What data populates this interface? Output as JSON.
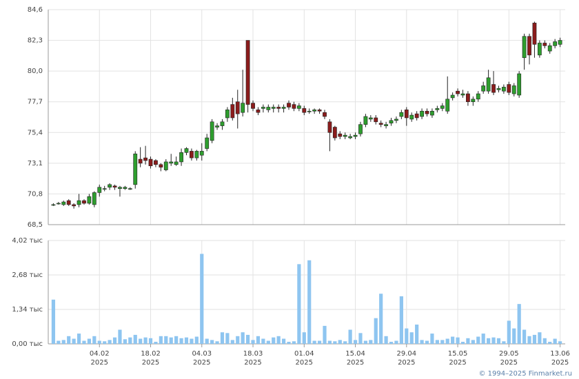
{
  "chart_data": [
    {
      "type": "candlestick",
      "x": [
        0,
        1,
        2,
        3,
        4,
        5,
        6,
        7,
        8,
        9,
        10,
        11,
        12,
        13,
        14,
        15,
        16,
        17,
        18,
        19,
        20,
        21,
        22,
        23,
        24,
        25,
        26,
        27,
        28,
        29,
        30,
        31,
        32,
        33,
        34,
        35,
        36,
        37,
        38,
        39,
        40,
        41,
        42,
        43,
        44,
        45,
        46,
        47,
        48,
        49,
        50,
        51,
        52,
        53,
        54,
        55,
        56,
        57,
        58,
        59,
        60,
        61,
        62,
        63,
        64,
        65,
        66,
        67,
        68,
        69,
        70,
        71,
        72,
        73,
        74,
        75,
        76,
        77,
        78,
        79,
        80,
        81,
        82,
        83,
        84,
        85,
        86,
        87,
        88,
        89,
        90,
        91,
        92,
        93,
        94,
        95,
        96,
        97,
        98,
        99
      ],
      "open": [
        70.0,
        70.1,
        70.0,
        70.3,
        70.0,
        70.0,
        70.3,
        70.1,
        70.0,
        70.9,
        71.2,
        71.3,
        71.4,
        71.2,
        71.2,
        71.2,
        71.5,
        73.4,
        73.5,
        73.4,
        73.3,
        73.0,
        72.6,
        73.1,
        73.0,
        73.2,
        73.9,
        74.0,
        73.5,
        73.7,
        74.2,
        74.8,
        75.8,
        75.9,
        76.5,
        77.5,
        77.7,
        76.9,
        82.3,
        77.6,
        77.1,
        77.2,
        77.1,
        77.2,
        77.3,
        77.2,
        77.6,
        77.5,
        77.2,
        77.2,
        77.0,
        77.0,
        77.1,
        76.9,
        76.2,
        75.8,
        75.3,
        75.1,
        75.0,
        75.1,
        75.3,
        76.0,
        76.4,
        76.5,
        76.1,
        75.9,
        76.1,
        76.3,
        76.6,
        77.1,
        76.4,
        76.8,
        76.6,
        77.0,
        76.7,
        77.1,
        77.2,
        77.0,
        78.0,
        78.5,
        78.2,
        78.3,
        77.7,
        77.9,
        78.5,
        78.5,
        79.0,
        78.6,
        78.5,
        79.0,
        78.3,
        78.2,
        81.0,
        82.6,
        83.6,
        81.2,
        82.1,
        81.5,
        81.9,
        82.0
      ],
      "high": [
        70.1,
        70.2,
        70.3,
        70.4,
        70.1,
        70.8,
        70.4,
        70.8,
        71.0,
        71.5,
        71.4,
        71.6,
        71.5,
        71.4,
        71.4,
        71.3,
        74.0,
        74.3,
        74.4,
        73.6,
        73.4,
        73.1,
        73.4,
        73.8,
        73.6,
        74.2,
        74.3,
        74.2,
        74.1,
        74.6,
        75.3,
        76.4,
        76.1,
        76.4,
        77.3,
        78.0,
        78.6,
        80.1,
        82.3,
        77.8,
        77.3,
        77.5,
        77.5,
        77.5,
        77.5,
        77.5,
        77.8,
        77.7,
        77.6,
        77.4,
        77.2,
        77.2,
        77.2,
        77.1,
        76.4,
        75.9,
        75.5,
        75.4,
        75.3,
        75.4,
        76.2,
        76.8,
        76.7,
        76.7,
        76.3,
        76.2,
        76.5,
        76.6,
        77.1,
        77.3,
        76.9,
        77.0,
        77.2,
        77.2,
        77.2,
        77.4,
        77.6,
        79.6,
        78.4,
        78.7,
        78.6,
        78.5,
        78.1,
        78.5,
        79.2,
        80.1,
        80.0,
        78.9,
        79.0,
        79.2,
        79.1,
        80.0,
        82.8,
        82.8,
        83.7,
        82.3,
        82.3,
        82.1,
        82.4,
        82.5
      ],
      "low": [
        69.9,
        70.0,
        69.9,
        69.9,
        69.7,
        69.8,
        70.0,
        70.0,
        69.8,
        70.6,
        71.0,
        71.1,
        71.1,
        70.6,
        71.1,
        71.1,
        71.2,
        72.8,
        73.0,
        72.7,
        72.8,
        72.5,
        72.5,
        72.9,
        72.9,
        72.9,
        73.7,
        73.3,
        73.3,
        73.3,
        74.0,
        74.6,
        75.6,
        75.6,
        76.2,
        76.3,
        75.7,
        76.6,
        76.9,
        77.0,
        76.7,
        76.9,
        76.9,
        76.9,
        76.9,
        76.9,
        77.1,
        77.0,
        77.0,
        76.7,
        76.8,
        76.8,
        76.8,
        76.4,
        74.0,
        74.8,
        74.9,
        74.9,
        74.9,
        74.9,
        75.1,
        75.8,
        76.2,
        76.0,
        75.8,
        75.7,
        75.9,
        76.1,
        76.4,
        75.9,
        76.2,
        76.3,
        76.4,
        76.6,
        76.5,
        76.9,
        77.0,
        76.8,
        77.8,
        78.1,
        78.0,
        77.4,
        77.4,
        77.7,
        78.3,
        78.3,
        78.2,
        78.4,
        78.3,
        78.2,
        78.1,
        78.0,
        80.1,
        80.5,
        81.0,
        81.0,
        81.7,
        81.3,
        81.7,
        81.8
      ],
      "close": [
        70.0,
        70.1,
        70.2,
        70.0,
        69.9,
        70.3,
        70.1,
        70.6,
        70.9,
        71.3,
        71.2,
        71.5,
        71.3,
        71.3,
        71.3,
        71.2,
        73.8,
        73.1,
        73.3,
        72.9,
        73.0,
        72.8,
        73.2,
        73.2,
        73.2,
        73.9,
        74.2,
        73.5,
        74.0,
        74.0,
        75.0,
        76.2,
        75.9,
        76.2,
        77.1,
        76.5,
        76.8,
        77.6,
        77.5,
        77.2,
        76.9,
        77.3,
        77.3,
        77.3,
        77.2,
        77.3,
        77.3,
        77.2,
        77.4,
        76.9,
        77.0,
        77.1,
        77.0,
        76.6,
        75.4,
        75.0,
        75.1,
        75.2,
        75.1,
        75.2,
        76.0,
        76.6,
        76.5,
        76.2,
        76.0,
        76.0,
        76.3,
        76.4,
        76.9,
        76.5,
        76.7,
        76.5,
        77.0,
        76.8,
        77.0,
        77.2,
        77.4,
        77.9,
        78.2,
        78.3,
        78.3,
        77.7,
        77.9,
        78.3,
        78.9,
        79.5,
        78.4,
        78.7,
        78.8,
        78.4,
        78.9,
        79.8,
        82.6,
        81.2,
        82.0,
        82.1,
        81.9,
        81.9,
        82.2,
        82.3
      ],
      "up_color": "#2e9e2e",
      "down_color": "#8b1c1c",
      "xlim": [
        -1,
        100
      ],
      "ylim": [
        68.5,
        84.6
      ],
      "yticks": [
        {
          "value": 68.5,
          "label": "68,5"
        },
        {
          "value": 70.8,
          "label": "70,8"
        },
        {
          "value": 73.1,
          "label": "73,1"
        },
        {
          "value": 75.4,
          "label": "75,4"
        },
        {
          "value": 77.7,
          "label": "77,7"
        },
        {
          "value": 80.0,
          "label": "80,0"
        },
        {
          "value": 82.3,
          "label": "82,3"
        },
        {
          "value": 84.6,
          "label": "84,6"
        }
      ],
      "grid": true
    },
    {
      "type": "bar",
      "x": [
        0,
        1,
        2,
        3,
        4,
        5,
        6,
        7,
        8,
        9,
        10,
        11,
        12,
        13,
        14,
        15,
        16,
        17,
        18,
        19,
        20,
        21,
        22,
        23,
        24,
        25,
        26,
        27,
        28,
        29,
        30,
        31,
        32,
        33,
        34,
        35,
        36,
        37,
        38,
        39,
        40,
        41,
        42,
        43,
        44,
        45,
        46,
        47,
        48,
        49,
        50,
        51,
        52,
        53,
        54,
        55,
        56,
        57,
        58,
        59,
        60,
        61,
        62,
        63,
        64,
        65,
        66,
        67,
        68,
        69,
        70,
        71,
        72,
        73,
        74,
        75,
        76,
        77,
        78,
        79,
        80,
        81,
        82,
        83,
        84,
        85,
        86,
        87,
        88,
        89,
        90,
        91,
        92,
        93,
        94,
        95,
        96,
        97,
        98,
        99
      ],
      "values": [
        1.72,
        0.12,
        0.15,
        0.3,
        0.2,
        0.4,
        0.12,
        0.2,
        0.3,
        0.12,
        0.1,
        0.15,
        0.25,
        0.55,
        0.18,
        0.25,
        0.35,
        0.2,
        0.25,
        0.22,
        0.08,
        0.3,
        0.3,
        0.25,
        0.3,
        0.22,
        0.25,
        0.2,
        0.28,
        3.5,
        0.2,
        0.15,
        0.1,
        0.45,
        0.42,
        0.15,
        0.3,
        0.45,
        0.35,
        0.15,
        0.3,
        0.2,
        0.12,
        0.25,
        0.3,
        0.2,
        0.08,
        0.1,
        3.1,
        0.45,
        3.25,
        0.12,
        0.12,
        0.7,
        0.12,
        0.1,
        0.15,
        0.1,
        0.55,
        0.15,
        0.42,
        0.12,
        0.15,
        1.0,
        1.95,
        0.3,
        0.08,
        0.12,
        1.85,
        0.6,
        0.45,
        0.75,
        0.15,
        0.12,
        0.4,
        0.15,
        0.15,
        0.2,
        0.28,
        0.25,
        0.08,
        0.22,
        0.15,
        0.28,
        0.4,
        0.22,
        0.25,
        0.22,
        0.1,
        0.9,
        0.6,
        1.55,
        0.55,
        0.3,
        0.35,
        0.45,
        0.22,
        0.08,
        0.2,
        0.1
      ],
      "color": "#8ec5f0",
      "xlim": [
        -1,
        100
      ],
      "ylim": [
        0,
        4.02
      ],
      "yticks": [
        {
          "value": 0,
          "label": "0,00 тыс"
        },
        {
          "value": 1.34,
          "label": "1,34 тыс"
        },
        {
          "value": 2.68,
          "label": "2,68 тыс"
        },
        {
          "value": 4.02,
          "label": "4,02 тыс"
        }
      ],
      "xticks": [
        {
          "value": 9,
          "label": "04.02",
          "year": "2025"
        },
        {
          "value": 19,
          "label": "18.02",
          "year": "2025"
        },
        {
          "value": 29,
          "label": "04.03",
          "year": "2025"
        },
        {
          "value": 39,
          "label": "18.03",
          "year": "2025"
        },
        {
          "value": 49,
          "label": "01.04",
          "year": "2025"
        },
        {
          "value": 59,
          "label": "15.04",
          "year": "2025"
        },
        {
          "value": 69,
          "label": "29.04",
          "year": "2025"
        },
        {
          "value": 79,
          "label": "15.05",
          "year": "2025"
        },
        {
          "value": 89,
          "label": "29.05",
          "year": "2025"
        },
        {
          "value": 99,
          "label": "13.06",
          "year": "2025"
        }
      ],
      "grid": true
    }
  ],
  "copyright": "© 1994–2025 Finmarket.ru"
}
